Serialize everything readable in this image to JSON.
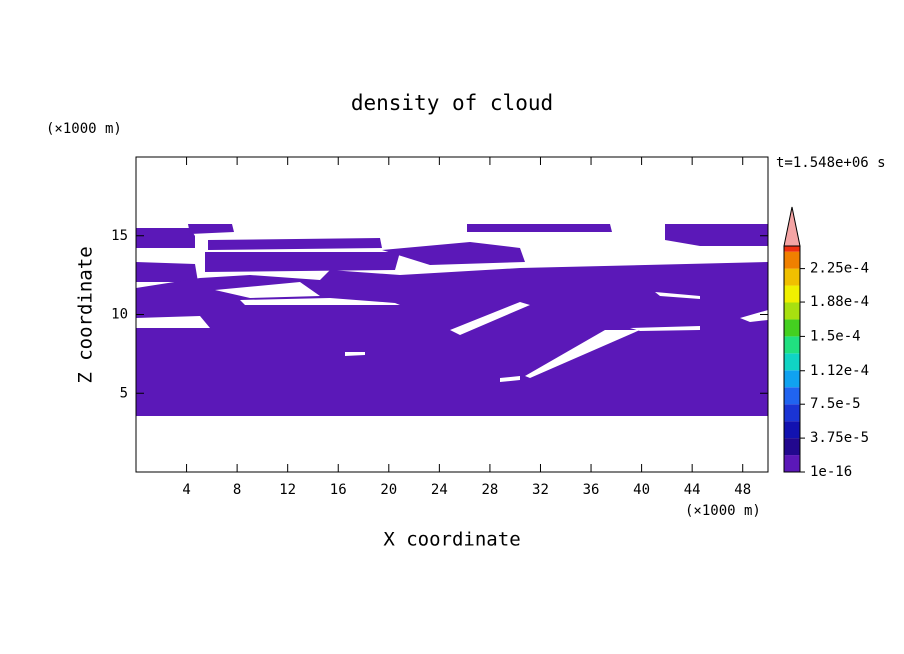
{
  "chart_data": {
    "type": "contour",
    "title": "density of cloud",
    "x_label": "X coordinate",
    "y_label": "Z coordinate",
    "x_unit": "(×1000 m)",
    "y_unit": "(×1000 m)",
    "annotation": "t=1.548e+06 s",
    "xlim": [
      0,
      50
    ],
    "xticks": [
      4,
      8,
      12,
      16,
      20,
      24,
      28,
      32,
      36,
      40,
      44,
      48
    ],
    "ylim": [
      0,
      20
    ],
    "yticks": [
      5,
      10,
      15
    ],
    "colorbar": {
      "clim": [
        0,
        0.00025
      ],
      "colors": [
        "#5b18b8",
        "#22088e",
        "#1212b0",
        "#1a34d4",
        "#2064f0",
        "#10a2f0",
        "#10d4c4",
        "#20e080",
        "#44d020",
        "#a8e010",
        "#f0f000",
        "#f0c000",
        "#f08000",
        "#f03010"
      ],
      "extend_color": "#f4a4a4",
      "ticks": [
        1e-16,
        {
          "value": 3.75e-05,
          "label": "3.75e-5"
        },
        {
          "value": 7.5e-05,
          "label": "7.5e-5"
        },
        {
          "value": 0.000112,
          "label": "1.12e-4"
        },
        {
          "value": 0.00015,
          "label": "1.5e-4"
        },
        {
          "value": 0.000188,
          "label": "1.88e-4"
        },
        {
          "value": 0.000225,
          "label": "2.25e-4"
        }
      ]
    }
  }
}
